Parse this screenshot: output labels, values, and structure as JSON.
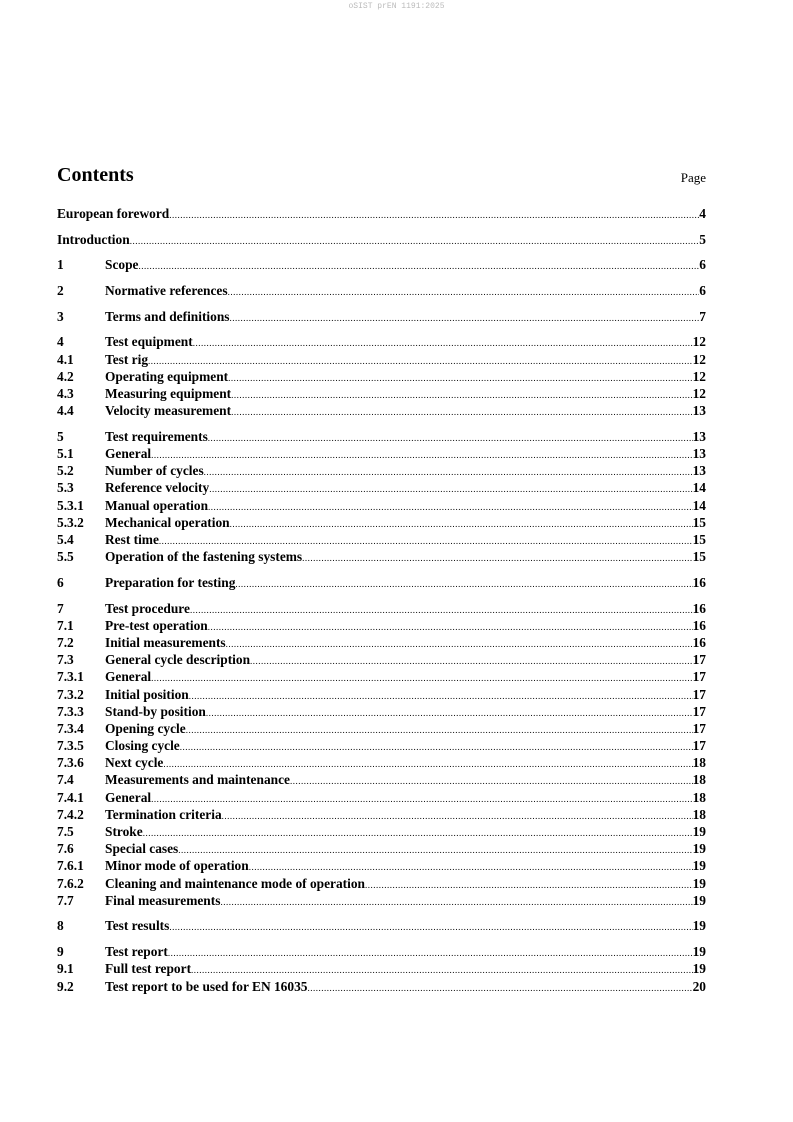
{
  "watermark": "oSIST prEN 1191:2025",
  "title": "Contents",
  "page_label": "Page",
  "groups": [
    [
      {
        "num": "",
        "label": "European foreword",
        "page": "4"
      }
    ],
    [
      {
        "num": "",
        "label": "Introduction",
        "page": "5"
      }
    ],
    [
      {
        "num": "1",
        "label": "Scope",
        "page": "6"
      }
    ],
    [
      {
        "num": "2",
        "label": "Normative references",
        "page": "6"
      }
    ],
    [
      {
        "num": "3",
        "label": "Terms and definitions",
        "page": "7"
      }
    ],
    [
      {
        "num": "4",
        "label": "Test equipment",
        "page": "12"
      },
      {
        "num": "4.1",
        "label": "Test rig",
        "page": "12"
      },
      {
        "num": "4.2",
        "label": "Operating equipment",
        "page": "12"
      },
      {
        "num": "4.3",
        "label": "Measuring equipment",
        "page": "12"
      },
      {
        "num": "4.4",
        "label": "Velocity measurement",
        "page": "13"
      }
    ],
    [
      {
        "num": "5",
        "label": "Test requirements",
        "page": "13"
      },
      {
        "num": "5.1",
        "label": "General",
        "page": "13"
      },
      {
        "num": "5.2",
        "label": "Number of cycles",
        "page": "13"
      },
      {
        "num": "5.3",
        "label": "Reference velocity",
        "page": "14"
      },
      {
        "num": "5.3.1",
        "label": "Manual operation",
        "page": "14"
      },
      {
        "num": "5.3.2",
        "label": "Mechanical operation",
        "page": "15"
      },
      {
        "num": "5.4",
        "label": "Rest time",
        "page": "15"
      },
      {
        "num": "5.5",
        "label": "Operation of the fastening systems",
        "page": "15"
      }
    ],
    [
      {
        "num": "6",
        "label": "Preparation for testing",
        "page": "16"
      }
    ],
    [
      {
        "num": "7",
        "label": "Test procedure",
        "page": "16"
      },
      {
        "num": "7.1",
        "label": "Pre-test operation",
        "page": "16"
      },
      {
        "num": "7.2",
        "label": "Initial measurements",
        "page": "16"
      },
      {
        "num": "7.3",
        "label": "General cycle description",
        "page": "17"
      },
      {
        "num": "7.3.1",
        "label": "General",
        "page": "17"
      },
      {
        "num": "7.3.2",
        "label": "Initial position",
        "page": "17"
      },
      {
        "num": "7.3.3",
        "label": "Stand-by position",
        "page": "17"
      },
      {
        "num": "7.3.4",
        "label": "Opening cycle",
        "page": "17"
      },
      {
        "num": "7.3.5",
        "label": "Closing cycle",
        "page": "17"
      },
      {
        "num": "7.3.6",
        "label": "Next cycle",
        "page": "18"
      },
      {
        "num": "7.4",
        "label": "Measurements and maintenance",
        "page": "18"
      },
      {
        "num": "7.4.1",
        "label": "General",
        "page": "18"
      },
      {
        "num": "7.4.2",
        "label": "Termination criteria",
        "page": "18"
      },
      {
        "num": "7.5",
        "label": "Stroke",
        "page": "19"
      },
      {
        "num": "7.6",
        "label": "Special cases",
        "page": "19"
      },
      {
        "num": "7.6.1",
        "label": "Minor mode of operation",
        "page": "19"
      },
      {
        "num": "7.6.2",
        "label": "Cleaning and maintenance mode of operation",
        "page": "19"
      },
      {
        "num": "7.7",
        "label": "Final measurements",
        "page": "19"
      }
    ],
    [
      {
        "num": "8",
        "label": "Test results",
        "page": "19"
      }
    ],
    [
      {
        "num": "9",
        "label": "Test report",
        "page": "19"
      },
      {
        "num": "9.1",
        "label": "Full test report",
        "page": "19"
      },
      {
        "num": "9.2",
        "label": "Test report to be used for EN 16035",
        "page": "20"
      }
    ]
  ]
}
